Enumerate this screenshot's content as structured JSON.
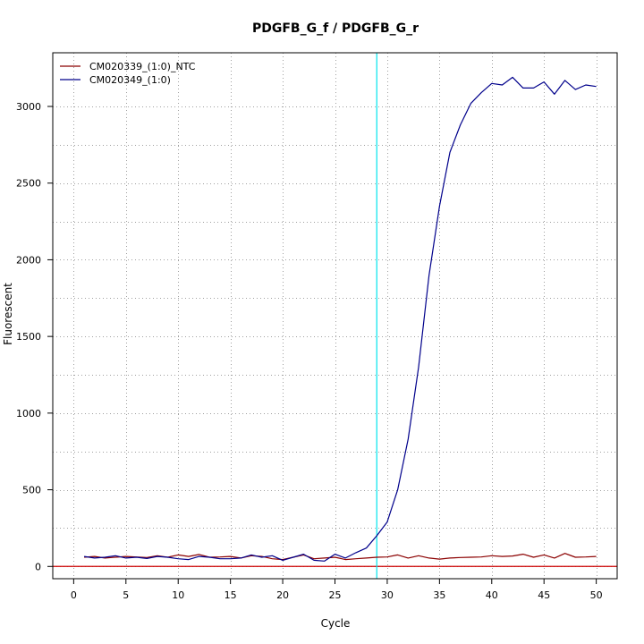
{
  "chart_data": {
    "type": "line",
    "title": "PDGFB_G_f / PDGFB_G_r",
    "xlabel": "Cycle",
    "ylabel": "Fluorescent",
    "xlim": [
      -2,
      52
    ],
    "ylim": [
      -80,
      3350
    ],
    "x_ticks": [
      0,
      5,
      10,
      15,
      20,
      25,
      30,
      35,
      40,
      45,
      50
    ],
    "y_ticks": [
      0,
      500,
      1000,
      1500,
      2000,
      2500,
      3000
    ],
    "grid": true,
    "legend_position": "top-left",
    "threshold_line": {
      "axis": "y",
      "value": 0,
      "color": "#cc0000"
    },
    "vertical_line": {
      "axis": "x",
      "value": 29,
      "color": "#00e5ee"
    },
    "x": [
      1,
      2,
      3,
      4,
      5,
      6,
      7,
      8,
      9,
      10,
      11,
      12,
      13,
      14,
      15,
      16,
      17,
      18,
      19,
      20,
      21,
      22,
      23,
      24,
      25,
      26,
      27,
      28,
      29,
      30,
      31,
      32,
      33,
      34,
      35,
      36,
      37,
      38,
      39,
      40,
      41,
      42,
      43,
      44,
      45,
      46,
      47,
      48,
      49,
      50
    ],
    "series": [
      {
        "name": "CM020339_(1:0)_NTC",
        "color": "#8b0000",
        "values": [
          60,
          65,
          55,
          60,
          65,
          62,
          58,
          70,
          60,
          75,
          65,
          78,
          60,
          62,
          65,
          55,
          70,
          65,
          50,
          45,
          60,
          75,
          50,
          55,
          60,
          45,
          50,
          55,
          60,
          62,
          75,
          55,
          70,
          55,
          48,
          55,
          58,
          60,
          62,
          70,
          65,
          68,
          80,
          60,
          75,
          55,
          85,
          60,
          62,
          65
        ]
      },
      {
        "name": "CM020349_(1:0)",
        "color": "#00008b",
        "values": [
          65,
          55,
          60,
          70,
          55,
          60,
          52,
          65,
          60,
          50,
          45,
          65,
          60,
          50,
          50,
          55,
          75,
          60,
          70,
          40,
          60,
          80,
          40,
          35,
          80,
          55,
          90,
          120,
          200,
          290,
          500,
          830,
          1300,
          1900,
          2350,
          2700,
          2880,
          3020,
          3090,
          3150,
          3140,
          3190,
          3120,
          3120,
          3160,
          3080,
          3170,
          3110,
          3140,
          3130
        ]
      }
    ]
  }
}
